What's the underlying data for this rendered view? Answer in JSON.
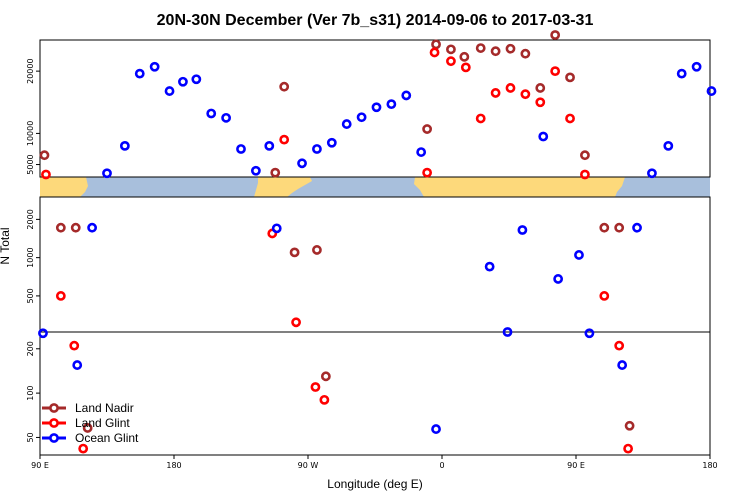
{
  "chart_data": {
    "type": "scatter",
    "title": "20N-30N December (Ver 7b_s31)   2014-09-06 to 2017-03-31",
    "xlabel": "Longitude (deg E)",
    "ylabel": "N Total",
    "x_ticks": [
      {
        "value": 90,
        "label": "90 E"
      },
      {
        "value": 180,
        "label": "180"
      },
      {
        "value": 270,
        "label": "90 W"
      },
      {
        "value": 360,
        "label": "0"
      },
      {
        "value": 450,
        "label": "90 E"
      },
      {
        "value": 540,
        "label": "180"
      }
    ],
    "xlim": [
      90,
      540
    ],
    "panels": [
      {
        "name": "upper",
        "scale": "linear",
        "ylim": [
          3000,
          25000
        ],
        "ticks": [
          5000,
          10000,
          20000
        ]
      },
      {
        "name": "middle",
        "scale": "log",
        "ylim": [
          260,
          3000
        ],
        "ticks": [
          500,
          1000,
          2000
        ]
      },
      {
        "name": "lower",
        "scale": "log",
        "ylim": [
          38,
          260
        ],
        "ticks": [
          50,
          100,
          200
        ]
      }
    ],
    "legend": {
      "position": "bottom-left"
    },
    "colors": {
      "land_nadir": "#a52a2a",
      "land_glint": "#ff0000",
      "ocean_glint": "#0000ff",
      "land_band": "#fdd97b",
      "ocean_band": "#a8bfdc"
    },
    "series": [
      {
        "name": "Land Nadir",
        "key": "land_nadir",
        "points": [
          [
            93,
            6500
          ],
          [
            104,
            1720
          ],
          [
            114,
            1720
          ],
          [
            122,
            58
          ],
          [
            248,
            3700
          ],
          [
            254,
            17500
          ],
          [
            261,
            1100
          ],
          [
            276,
            1150
          ],
          [
            282,
            130
          ],
          [
            350,
            10700
          ],
          [
            356,
            24300
          ],
          [
            366,
            23500
          ],
          [
            375,
            22300
          ],
          [
            386,
            23700
          ],
          [
            396,
            23200
          ],
          [
            406,
            23600
          ],
          [
            416,
            22800
          ],
          [
            426,
            17300
          ],
          [
            436,
            25800
          ],
          [
            446,
            19000
          ],
          [
            456,
            6500
          ],
          [
            469,
            1720
          ],
          [
            479,
            1720
          ],
          [
            486,
            60
          ]
        ]
      },
      {
        "name": "Land Glint",
        "key": "land_glint",
        "points": [
          [
            94,
            3400
          ],
          [
            104,
            500
          ],
          [
            113,
            210
          ],
          [
            119,
            42
          ],
          [
            246,
            1550
          ],
          [
            254,
            9000
          ],
          [
            262,
            310
          ],
          [
            275,
            110
          ],
          [
            281,
            90
          ],
          [
            350,
            3700
          ],
          [
            355,
            23000
          ],
          [
            366,
            21600
          ],
          [
            376,
            20600
          ],
          [
            386,
            12400
          ],
          [
            396,
            16500
          ],
          [
            406,
            17300
          ],
          [
            416,
            16300
          ],
          [
            426,
            15000
          ],
          [
            436,
            20000
          ],
          [
            446,
            12400
          ],
          [
            456,
            3400
          ],
          [
            469,
            500
          ],
          [
            479,
            210
          ],
          [
            485,
            42
          ]
        ]
      },
      {
        "name": "Ocean Glint",
        "key": "ocean_glint",
        "points": [
          [
            92,
            255
          ],
          [
            115,
            155
          ],
          [
            125,
            1720
          ],
          [
            135,
            3600
          ],
          [
            147,
            8000
          ],
          [
            157,
            19600
          ],
          [
            167,
            20700
          ],
          [
            177,
            16800
          ],
          [
            186,
            18300
          ],
          [
            195,
            18700
          ],
          [
            205,
            13200
          ],
          [
            215,
            12500
          ],
          [
            225,
            7500
          ],
          [
            235,
            4000
          ],
          [
            244,
            8000
          ],
          [
            249,
            1700
          ],
          [
            266,
            5200
          ],
          [
            276,
            7500
          ],
          [
            286,
            8500
          ],
          [
            296,
            11500
          ],
          [
            306,
            12600
          ],
          [
            316,
            14200
          ],
          [
            326,
            14700
          ],
          [
            336,
            16100
          ],
          [
            346,
            7000
          ],
          [
            356,
            57
          ],
          [
            392,
            850
          ],
          [
            404,
            260
          ],
          [
            414,
            1650
          ],
          [
            428,
            9500
          ],
          [
            438,
            680
          ],
          [
            452,
            1050
          ],
          [
            459,
            255
          ],
          [
            481,
            155
          ],
          [
            491,
            1720
          ],
          [
            501,
            3600
          ],
          [
            512,
            8000
          ],
          [
            521,
            19600
          ],
          [
            531,
            20700
          ],
          [
            541,
            16800
          ]
        ]
      }
    ]
  }
}
